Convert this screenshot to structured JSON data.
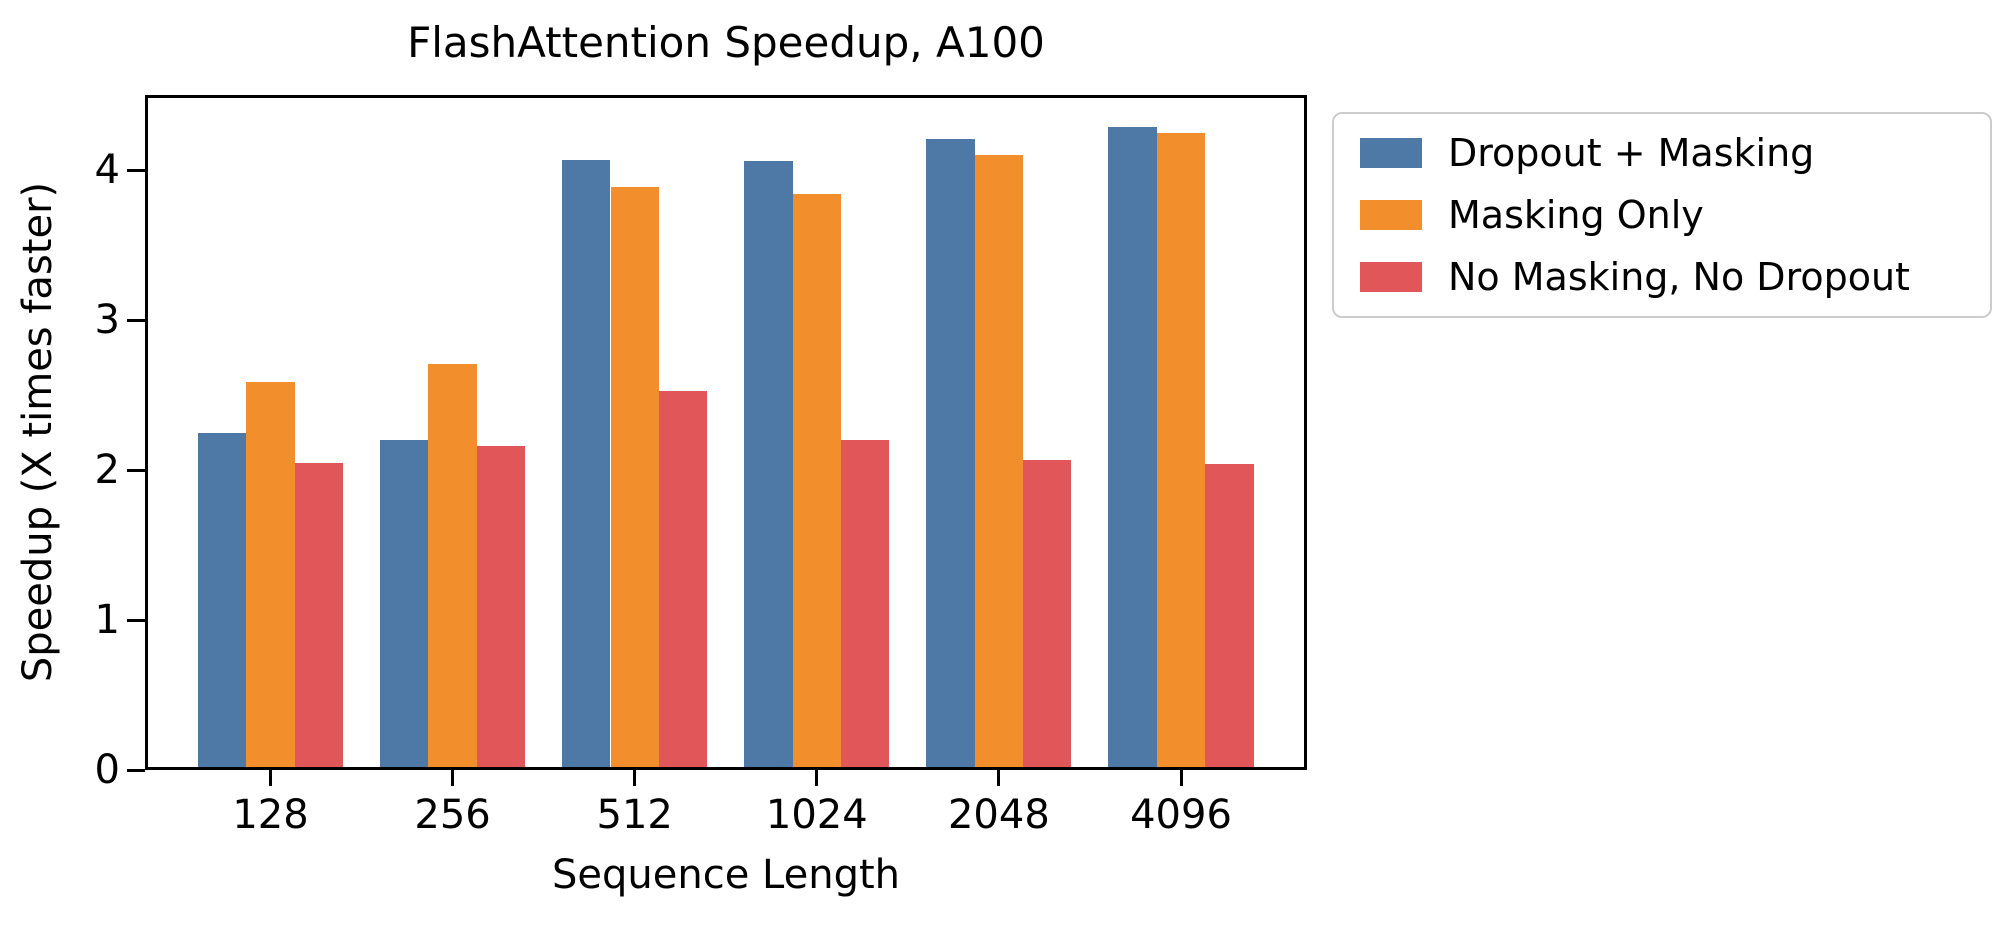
{
  "chart_data": {
    "type": "bar",
    "title": "FlashAttention Speedup, A100",
    "xlabel": "Sequence Length",
    "ylabel": "Speedup (X times faster)",
    "categories": [
      "128",
      "256",
      "512",
      "1024",
      "2048",
      "4096"
    ],
    "series": [
      {
        "name": "Dropout + Masking",
        "color": "#4E79A7",
        "values": [
          2.25,
          2.2,
          4.07,
          4.06,
          4.21,
          4.29
        ]
      },
      {
        "name": "Masking Only",
        "color": "#F28E2B",
        "values": [
          2.59,
          2.71,
          3.89,
          3.84,
          4.1,
          4.25
        ]
      },
      {
        "name": "No Masking, No Dropout",
        "color": "#E15759",
        "values": [
          2.05,
          2.16,
          2.53,
          2.2,
          2.07,
          2.04
        ]
      }
    ],
    "ylim": [
      0,
      4.5
    ],
    "yticks": [
      0,
      1,
      2,
      3,
      4
    ],
    "grid": false,
    "legend_position": "outside upper right",
    "axis_color": "#000000",
    "background_color": "#ffffff",
    "legend_border_color": "#cccccc"
  }
}
